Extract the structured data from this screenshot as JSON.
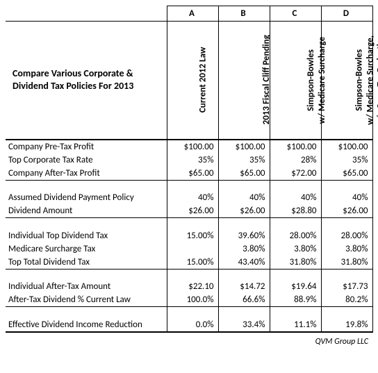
{
  "title_line1": "Compare Various Corporate &",
  "title_line2": "Dividend Tax Policies For 2013",
  "col_letters": [
    "A",
    "B",
    "C",
    "D"
  ],
  "col_headers": [
    "Current 2012 Law",
    "2013 Fiscal Cliff Pending",
    "Simpson-Bowles<br>w/ Medicare Surcharge",
    "Simpson-Bowles<br>w/ Medicare Surcharge,<br>w/o Corp. Tax Reduction"
  ],
  "rows": [
    {
      "label": "Company Pre-Tax Profit",
      "a": "$100.00",
      "b": "$100.00",
      "c": "$100.00",
      "d": "$100.00"
    },
    {
      "label": "Top Corporate Tax Rate",
      "a": "35%",
      "b": "35%",
      "c": "28%",
      "d": "35%"
    },
    {
      "label": "Company After-Tax Profit",
      "a": "$65.00",
      "b": "$65.00",
      "c": "$72.00",
      "d": "$65.00",
      "section_end": true
    },
    {
      "spacer": true
    },
    {
      "label": "Assumed Dividend Payment Policy",
      "a": "40%",
      "b": "40%",
      "c": "40%",
      "d": "40%"
    },
    {
      "label": "Dividend Amount",
      "a": "$26.00",
      "b": "$26.00",
      "c": "$28.80",
      "d": "$26.00",
      "section_end": true
    },
    {
      "spacer": true
    },
    {
      "label": "Individual Top Dividend Tax",
      "a": "15.00%",
      "b": "39.60%",
      "c": "28.00%",
      "d": "28.00%"
    },
    {
      "label": "Medicare Surcharge Tax",
      "a": "",
      "b": "3.80%",
      "c": "3.80%",
      "d": "3.80%"
    },
    {
      "label": "Top Total Dividend Tax",
      "a": "15.00%",
      "b": "43.40%",
      "c": "31.80%",
      "d": "31.80%",
      "section_end": true
    },
    {
      "spacer": true
    },
    {
      "label": "Individual After-Tax Amount",
      "a": "$22.10",
      "b": "$14.72",
      "c": "$19.64",
      "d": "$17.73"
    },
    {
      "label": "After-Tax Dividend  % Current Law",
      "a": "100.0%",
      "b": "66.6%",
      "c": "88.9%",
      "d": "80.2%",
      "section_end": true
    },
    {
      "spacer": true
    },
    {
      "label": "Effective Dividend Income Reduction",
      "a": "0.0%",
      "b": "33.4%",
      "c": "11.1%",
      "d": "19.8%",
      "last": true
    }
  ],
  "attribution": "QVM Group LLC"
}
